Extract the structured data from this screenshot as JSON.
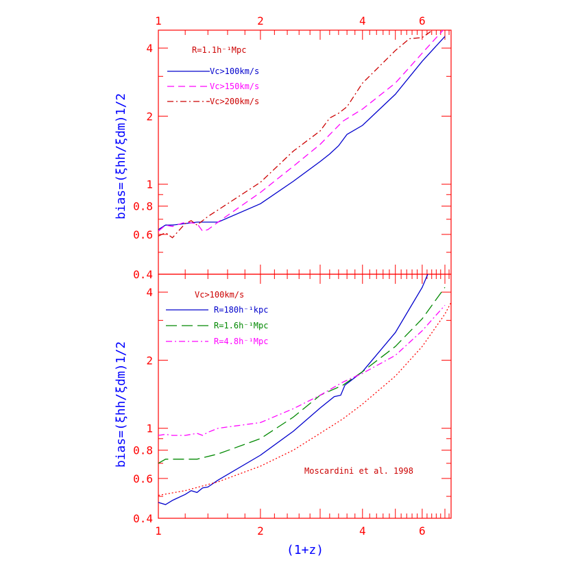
{
  "colors": {
    "frame": "#ff0000",
    "axis_label": "#0000ff",
    "blue": "#0000cc",
    "magenta": "#ff00ff",
    "red": "#cc0000",
    "green": "#008800",
    "dotted": "#ff0000"
  },
  "chart_data": [
    {
      "type": "line",
      "panel": "top",
      "xscale": "log",
      "yscale": "log",
      "xlim": [
        1,
        7.3
      ],
      "ylim": [
        0.4,
        4.8
      ],
      "xticks": [
        1,
        2,
        4,
        6
      ],
      "xtick_labels": [
        "1",
        "2",
        "4",
        "6"
      ],
      "yticks": [
        0.4,
        0.6,
        0.8,
        1,
        2,
        4
      ],
      "ytick_labels": [
        "0.4",
        "0.6",
        "0.8",
        "1",
        "2",
        "4"
      ],
      "ylabel": "bias=(ξhh/ξdm)1/2",
      "annotation": "R=1.1h⁻¹Mpc",
      "series": [
        {
          "name": "Vc>100km/s",
          "color": "blue",
          "dash": "solid",
          "x": [
            1.0,
            1.05,
            1.1,
            1.2,
            1.3,
            1.5,
            2.0,
            2.5,
            3.0,
            3.2,
            3.4,
            3.6,
            4.0,
            5.0,
            6.0,
            7.0
          ],
          "y": [
            0.63,
            0.66,
            0.66,
            0.67,
            0.68,
            0.68,
            0.82,
            1.03,
            1.26,
            1.36,
            1.48,
            1.66,
            1.82,
            2.5,
            3.5,
            4.5
          ]
        },
        {
          "name": "Vc>150km/s",
          "color": "magenta",
          "dash": "dashed",
          "x": [
            1.0,
            1.05,
            1.1,
            1.2,
            1.3,
            1.35,
            1.4,
            1.5,
            2.0,
            2.5,
            3.0,
            3.5,
            4.0,
            5.0,
            6.0,
            7.0
          ],
          "y": [
            0.62,
            0.66,
            0.65,
            0.68,
            0.67,
            0.62,
            0.63,
            0.68,
            0.92,
            1.2,
            1.5,
            1.9,
            2.15,
            2.8,
            3.8,
            4.9
          ]
        },
        {
          "name": "Vc>200km/s",
          "color": "red",
          "dash": "dashdot",
          "x": [
            1.0,
            1.05,
            1.1,
            1.2,
            1.25,
            1.3,
            1.4,
            1.5,
            2.0,
            2.5,
            3.0,
            3.2,
            3.4,
            3.6,
            4.0,
            5.0,
            5.5,
            6.0,
            6.5,
            7.0
          ],
          "y": [
            0.59,
            0.61,
            0.58,
            0.67,
            0.69,
            0.66,
            0.72,
            0.77,
            1.02,
            1.4,
            1.72,
            1.96,
            2.06,
            2.2,
            2.8,
            3.9,
            4.4,
            4.45,
            4.85,
            5.0
          ]
        }
      ]
    },
    {
      "type": "line",
      "panel": "bottom",
      "xscale": "log",
      "yscale": "log",
      "xlim": [
        1,
        7.3
      ],
      "ylim": [
        0.4,
        4.8
      ],
      "xticks": [
        1,
        2,
        4,
        6
      ],
      "xtick_labels": [
        "1",
        "2",
        "4",
        "6"
      ],
      "yticks": [
        0.4,
        0.6,
        0.8,
        1,
        2,
        4
      ],
      "ytick_labels": [
        "0.4",
        "0.6",
        "0.8",
        "1",
        "2",
        "4"
      ],
      "ylabel": "bias=(ξhh/ξdm)1/2",
      "xlabel": "(1+z)",
      "annotation": "Vc>100km/s",
      "series": [
        {
          "name": "R=180h⁻¹kpc",
          "color": "blue",
          "dash": "solid",
          "x": [
            1.0,
            1.05,
            1.1,
            1.2,
            1.25,
            1.3,
            1.35,
            1.4,
            1.5,
            2.0,
            2.5,
            3.0,
            3.3,
            3.45,
            3.55,
            4.0,
            5.0,
            6.0,
            6.3
          ],
          "y": [
            0.47,
            0.46,
            0.48,
            0.51,
            0.53,
            0.52,
            0.545,
            0.55,
            0.59,
            0.76,
            0.97,
            1.23,
            1.38,
            1.4,
            1.55,
            1.78,
            2.65,
            4.2,
            5.0
          ]
        },
        {
          "name": "R=1.6h⁻¹Mpc",
          "color": "green",
          "dash": "longdash",
          "x": [
            1.0,
            1.05,
            1.1,
            1.3,
            1.5,
            2.0,
            2.5,
            3.0,
            3.5,
            4.0,
            5.0,
            6.0,
            7.0
          ],
          "y": [
            0.7,
            0.73,
            0.73,
            0.73,
            0.77,
            0.9,
            1.12,
            1.4,
            1.55,
            1.78,
            2.3,
            3.05,
            4.2
          ]
        },
        {
          "name": "R=4.8h⁻¹Mpc",
          "color": "magenta",
          "dash": "dashdot",
          "x": [
            1.0,
            1.05,
            1.1,
            1.2,
            1.3,
            1.35,
            1.4,
            1.5,
            2.0,
            2.5,
            3.0,
            3.5,
            4.0,
            5.0,
            6.0,
            7.0
          ],
          "y": [
            0.93,
            0.94,
            0.93,
            0.93,
            0.95,
            0.93,
            0.96,
            1.0,
            1.06,
            1.22,
            1.4,
            1.6,
            1.75,
            2.1,
            2.7,
            3.5
          ]
        },
        {
          "name": "Moscardini et al. 1998",
          "color": "dotted",
          "dash": "dotted",
          "x": [
            1.0,
            1.2,
            1.5,
            2.0,
            2.5,
            3.0,
            3.5,
            4.0,
            5.0,
            6.0,
            7.0,
            7.3
          ],
          "y": [
            0.505,
            0.53,
            0.58,
            0.68,
            0.8,
            0.95,
            1.1,
            1.28,
            1.7,
            2.3,
            3.2,
            3.6
          ]
        }
      ]
    }
  ]
}
